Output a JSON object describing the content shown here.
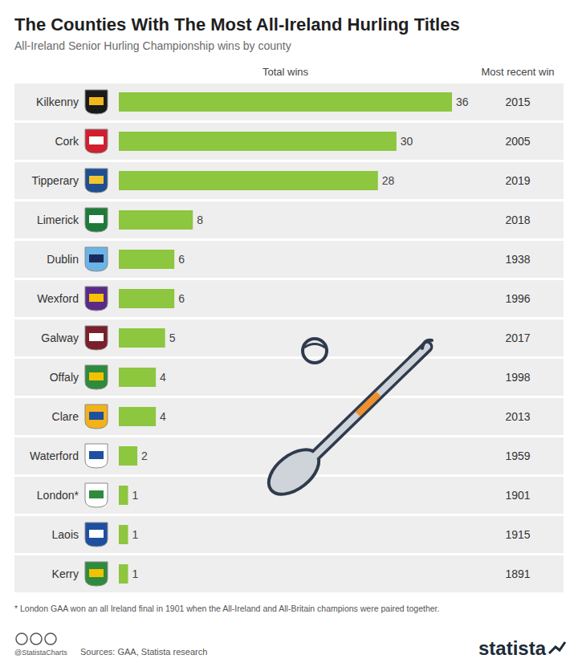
{
  "chart_data": {
    "type": "bar",
    "orientation": "horizontal",
    "title": "The Counties With The Most All-Ireland Hurling Titles",
    "subtitle": "All-Ireland Senior Hurling Championship wins by county",
    "value_heading": "Total wins",
    "year_heading": "Most recent win",
    "categories": [
      "Kilkenny",
      "Cork",
      "Tipperary",
      "Limerick",
      "Dublin",
      "Wexford",
      "Galway",
      "Offaly",
      "Clare",
      "Waterford",
      "London*",
      "Laois",
      "Kerry"
    ],
    "values": [
      36,
      30,
      28,
      8,
      6,
      6,
      5,
      4,
      4,
      2,
      1,
      1,
      1
    ],
    "most_recent_win": [
      2015,
      2005,
      2019,
      2018,
      1938,
      1996,
      2017,
      1998,
      2013,
      1959,
      1901,
      1915,
      1891
    ],
    "color": "#8dc63f",
    "xlim": [
      0,
      36
    ],
    "data_labels": true,
    "tick_labels": false,
    "grid": false,
    "note": "* London GAA won an all Ireland final in 1901 when the All-Ireland and All-Britain champions were paired together.",
    "source": "Sources: GAA, Statista research",
    "credit": "@StatistaCharts",
    "brand": "statista"
  }
}
